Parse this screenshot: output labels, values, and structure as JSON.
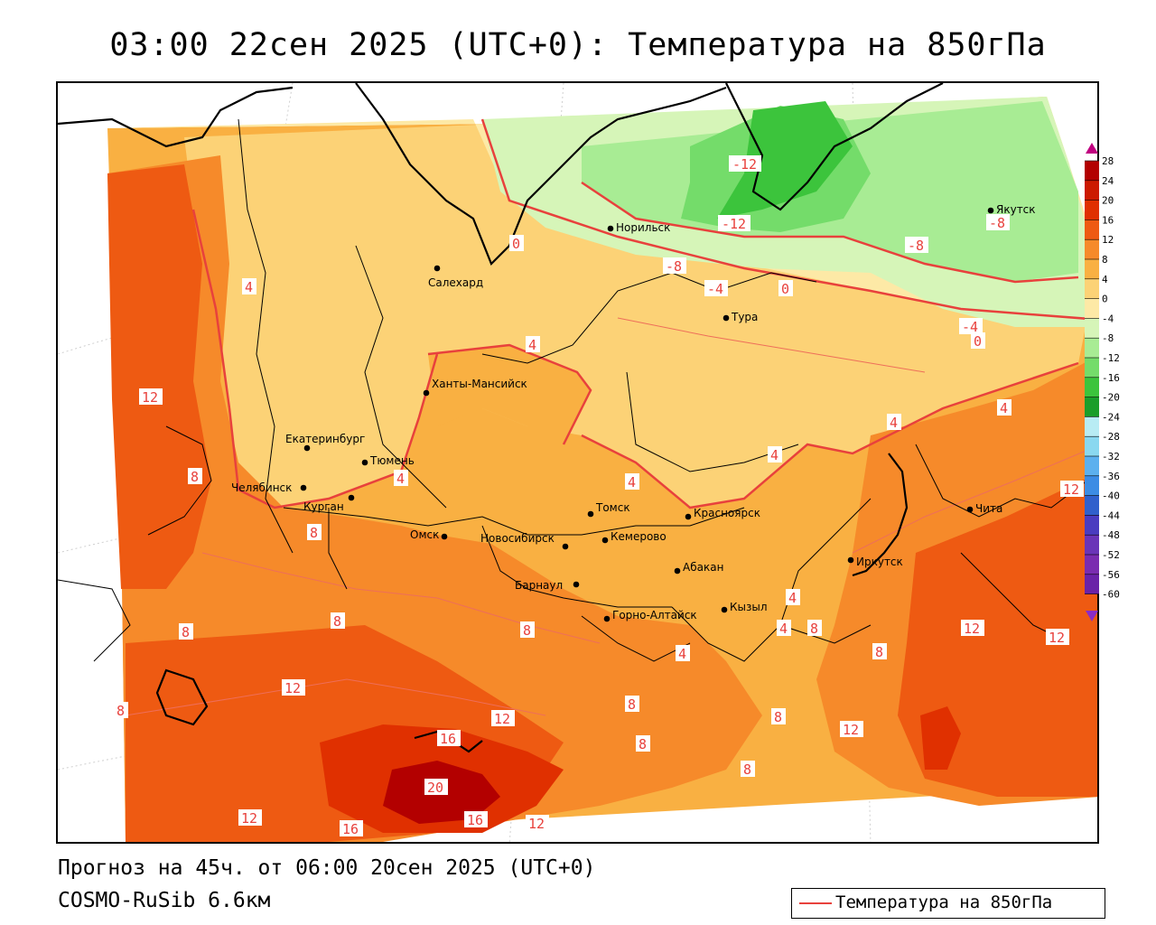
{
  "header": {
    "title": "03:00 22сен 2025 (UTC+0): Температура на 850гПа"
  },
  "footer": {
    "forecast": "Прогноз на 45ч. от 06:00 20сен 2025 (UTC+0)",
    "model": "COSMO-RuSib 6.6км"
  },
  "legend": {
    "label": "Температура на 850гПа",
    "line_color": "#e8413c"
  },
  "colorbar": {
    "ticks": [
      "28",
      "24",
      "20",
      "16",
      "12",
      "8",
      "4",
      "0",
      "-4",
      "-8",
      "-12",
      "-16",
      "-20",
      "-24",
      "-28",
      "-32",
      "-36",
      "-40",
      "-44",
      "-48",
      "-52",
      "-56",
      "-60"
    ],
    "colors": [
      "#b30000",
      "#cc1a00",
      "#e03000",
      "#ee5a12",
      "#f68a2a",
      "#f9b042",
      "#fcd276",
      "#fde9a6",
      "#d6f5b8",
      "#a8ec94",
      "#74dc6a",
      "#3cc43c",
      "#1a9e2a",
      "#b8ecf4",
      "#8ad8f0",
      "#5cb0ee",
      "#3c8ce4",
      "#3060cc",
      "#4a3cc0",
      "#6a34b8",
      "#7a2cb0",
      "#6a22a8"
    ]
  },
  "cities": [
    {
      "name": "Норильск"
    },
    {
      "name": "Якутск"
    },
    {
      "name": "Салехард"
    },
    {
      "name": "Тура"
    },
    {
      "name": "Ханты-Мансийск"
    },
    {
      "name": "Екатеринбург"
    },
    {
      "name": "Тюмень"
    },
    {
      "name": "Челябинск"
    },
    {
      "name": "Курган"
    },
    {
      "name": "Омск"
    },
    {
      "name": "Томск"
    },
    {
      "name": "Красноярск"
    },
    {
      "name": "Новосибирск"
    },
    {
      "name": "Кемерово"
    },
    {
      "name": "Абакан"
    },
    {
      "name": "Барнаул"
    },
    {
      "name": "Иркутск"
    },
    {
      "name": "Чита"
    },
    {
      "name": "Кызыл"
    },
    {
      "name": "Горно-Алтайск"
    }
  ],
  "isotherm_labels": [
    "-12",
    "-12",
    "-8",
    "-8",
    "-8",
    "-4",
    "-4",
    "0",
    "0",
    "0",
    "4",
    "4",
    "4",
    "4",
    "4",
    "4",
    "4",
    "4",
    "4",
    "4",
    "8",
    "8",
    "8",
    "8",
    "8",
    "8",
    "8",
    "8",
    "8",
    "8",
    "8",
    "8",
    "12",
    "12",
    "12",
    "12",
    "12",
    "12",
    "12",
    "12",
    "12",
    "16",
    "16",
    "16",
    "20"
  ]
}
